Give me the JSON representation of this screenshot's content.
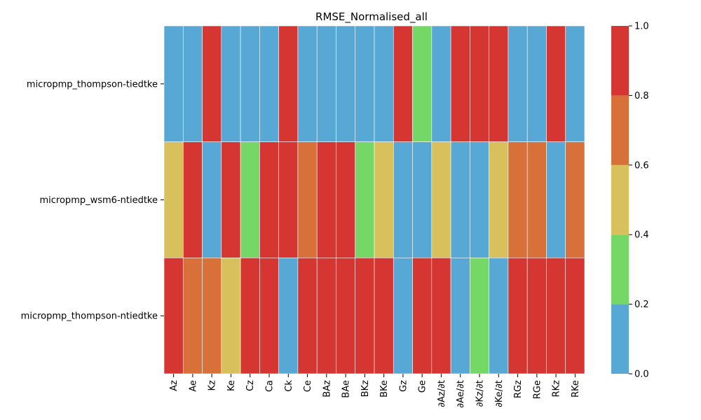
{
  "chart_data": {
    "type": "heatmap",
    "title": "RMSE_Normalised_all",
    "xlabel": "",
    "ylabel": "",
    "columns": [
      "Az",
      "Ae",
      "Kz",
      "Ke",
      "Cz",
      "Ca",
      "Ck",
      "Ce",
      "BAz",
      "BAe",
      "BKz",
      "BKe",
      "Gz",
      "Ge",
      "∂Az/∂t",
      "∂Ae/∂t",
      "∂Kz/∂t",
      "∂Ke/∂t",
      "RGz",
      "RGe",
      "RKz",
      "RKe"
    ],
    "rows": [
      "micropmp_thompson-tiedtke",
      "micropmp_wsm6-ntiedtke",
      "micropmp_thompson-ntiedtke"
    ],
    "values": [
      [
        0.1,
        0.1,
        0.9,
        0.1,
        0.1,
        0.1,
        0.9,
        0.1,
        0.1,
        0.1,
        0.1,
        0.1,
        0.9,
        0.3,
        0.1,
        0.9,
        0.9,
        0.9,
        0.1,
        0.1,
        0.9,
        0.1
      ],
      [
        0.5,
        0.9,
        0.1,
        0.9,
        0.3,
        0.9,
        0.9,
        0.7,
        0.9,
        0.9,
        0.3,
        0.5,
        0.1,
        0.1,
        0.5,
        0.1,
        0.1,
        0.5,
        0.7,
        0.7,
        0.1,
        0.7
      ],
      [
        0.9,
        0.7,
        0.7,
        0.5,
        0.9,
        0.9,
        0.1,
        0.9,
        0.9,
        0.9,
        0.9,
        0.9,
        0.1,
        0.9,
        0.9,
        0.1,
        0.3,
        0.1,
        0.9,
        0.9,
        0.9,
        0.9
      ]
    ],
    "colorbar": {
      "range": [
        0.0,
        1.0
      ],
      "bins": [
        {
          "from": 0.0,
          "to": 0.2,
          "color": "#58a8d6"
        },
        {
          "from": 0.2,
          "to": 0.4,
          "color": "#74d766"
        },
        {
          "from": 0.4,
          "to": 0.6,
          "color": "#d8c05c"
        },
        {
          "from": 0.6,
          "to": 0.8,
          "color": "#d77039"
        },
        {
          "from": 0.8,
          "to": 1.0,
          "color": "#d53632"
        }
      ],
      "ticks": [
        "0.0",
        "0.2",
        "0.4",
        "0.6",
        "0.8",
        "1.0"
      ]
    }
  }
}
